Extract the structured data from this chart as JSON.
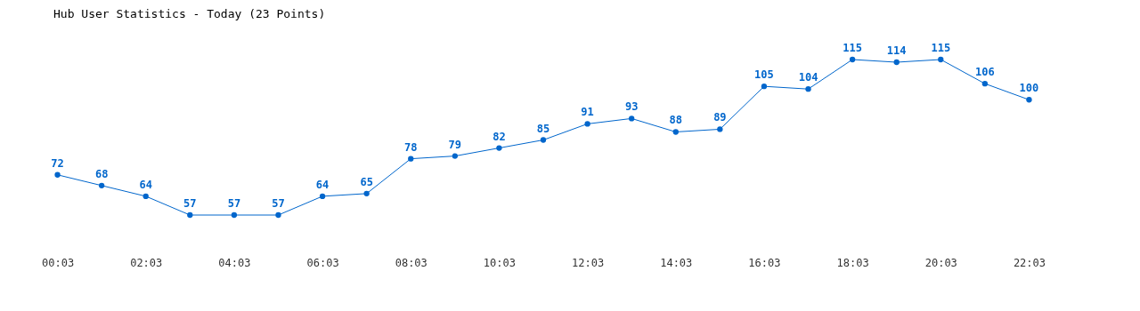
{
  "chart_data": {
    "type": "line",
    "title": "Hub User Statistics - Today (23 Points)",
    "categories": [
      "00:03",
      null,
      "02:03",
      null,
      "04:03",
      null,
      "06:03",
      null,
      "08:03",
      null,
      "10:03",
      null,
      "12:03",
      null,
      "14:03",
      null,
      "16:03",
      null,
      "18:03",
      null,
      "20:03",
      null,
      "22:03"
    ],
    "series": [
      {
        "color": "#0066cc",
        "values": [
          72,
          68,
          64,
          57,
          57,
          57,
          64,
          65,
          78,
          79,
          82,
          85,
          91,
          93,
          88,
          89,
          105,
          104,
          115,
          114,
          115,
          106,
          100
        ]
      }
    ],
    "tick_labels": "x",
    "data_labels": true,
    "marker": "circle",
    "line_style": "solid",
    "grid": false
  }
}
